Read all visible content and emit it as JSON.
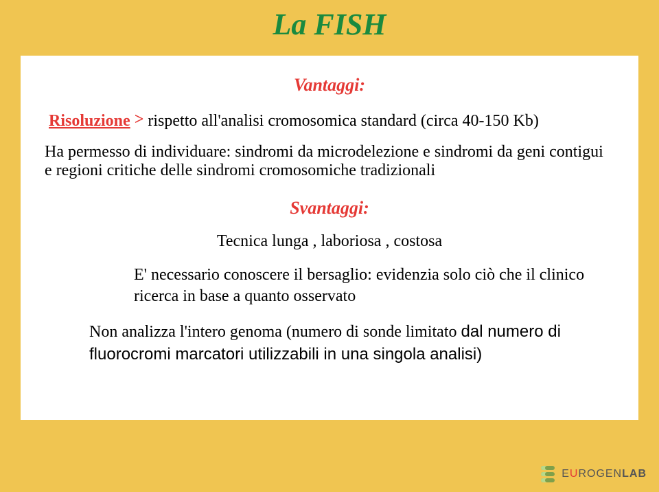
{
  "title": "La FISH",
  "vantaggi_label": "Vantaggi:",
  "line1_risoluzione": "Risoluzione",
  "line1_gt": ">",
  "line1_rest": " rispetto all'analisi cromosomica standard (circa 40-150 Kb)",
  "line2": "Ha permesso di individuare: sindromi da microdelezione e sindromi da geni contigui e regioni critiche delle sindromi cromosomiche tradizionali",
  "svantaggi_label": "Svantaggi:",
  "line3": "Tecnica lunga , laboriosa , costosa",
  "line4": "E' necessario conoscere il bersaglio: evidenzia solo ciò che il clinico ricerca in base a quanto osservato",
  "line5_cursive": "Non analizza l'intero genoma (numero di sonde limitato ",
  "line5_sans": "dal numero di fluorocromi marcatori utilizzabili in una singola analisi)",
  "logo_text_pre": "E",
  "logo_text_accent": "U",
  "logo_text_post": "ROGEN",
  "logo_text_suffix": "LAB",
  "colors": {
    "background": "#f0c551",
    "accent_red": "#e53935",
    "title_green": "#1a8a3f",
    "box_bg": "#ffffff",
    "text": "#000000"
  }
}
